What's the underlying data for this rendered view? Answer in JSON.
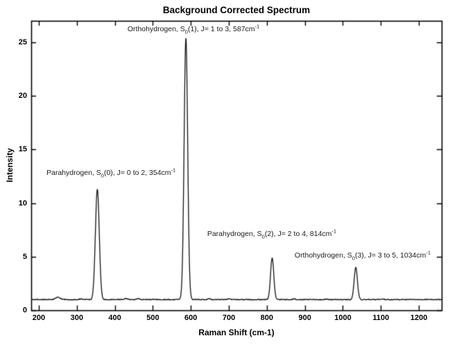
{
  "chart_data": {
    "type": "line",
    "title": "Background Corrected Spectrum",
    "xlabel": "Raman Shift (cm-1)",
    "ylabel": "Intensity",
    "xlim": [
      180,
      1260
    ],
    "ylim": [
      0,
      27
    ],
    "xticks": [
      200,
      300,
      400,
      500,
      600,
      700,
      800,
      900,
      1000,
      1100,
      1200
    ],
    "yticks": [
      0,
      5,
      10,
      15,
      20,
      25
    ],
    "grid": false,
    "legend": "none",
    "line_color": "#121212",
    "axis_color": "#000000",
    "background": "#ffffff",
    "baseline_intensity": 1.0,
    "noise_amplitude": 0.05,
    "peaks": [
      {
        "species": "Parahydrogen",
        "transition": "S0(0)",
        "J": "0 to 2",
        "center_cm": 354,
        "peak_intensity": 11.3,
        "fwhm_cm": 12
      },
      {
        "species": "Orthohydrogen",
        "transition": "S0(1)",
        "J": "1 to 3",
        "center_cm": 587,
        "peak_intensity": 25.4,
        "fwhm_cm": 11
      },
      {
        "species": "Parahydrogen",
        "transition": "S0(2)",
        "J": "2 to 4",
        "center_cm": 814,
        "peak_intensity": 4.9,
        "fwhm_cm": 10
      },
      {
        "species": "Orthohydrogen",
        "transition": "S0(3)",
        "J": "3 to 5",
        "center_cm": 1034,
        "peak_intensity": 4.0,
        "fwhm_cm": 10
      }
    ],
    "minor_features": [
      {
        "center_cm": 250,
        "height": 0.22,
        "fwhm_cm": 14
      },
      {
        "center_cm": 312,
        "height": 0.06,
        "fwhm_cm": 8
      },
      {
        "center_cm": 430,
        "height": 0.1,
        "fwhm_cm": 10
      },
      {
        "center_cm": 462,
        "height": 0.08,
        "fwhm_cm": 8
      },
      {
        "center_cm": 648,
        "height": 0.09,
        "fwhm_cm": 8
      },
      {
        "center_cm": 700,
        "height": 0.06,
        "fwhm_cm": 8
      },
      {
        "center_cm": 872,
        "height": 0.07,
        "fwhm_cm": 8
      },
      {
        "center_cm": 955,
        "height": 0.05,
        "fwhm_cm": 8
      },
      {
        "center_cm": 1105,
        "height": 0.05,
        "fwhm_cm": 8
      }
    ],
    "annotations": [
      {
        "prefix": "Parahydrogen, S",
        "sub": "0",
        "mid": "(0), J= 0 to 2, 354cm",
        "sup": "-1",
        "x": 390,
        "y": 12.8
      },
      {
        "prefix": "Orthohydrogen, S",
        "sub": "0",
        "mid": "(1), J= 1 to 3, 587cm",
        "sup": "-1",
        "x": 607,
        "y": 26.2
      },
      {
        "prefix": "Parahydrogen, S",
        "sub": "0",
        "mid": "(2), J= 2 to 4, 814cm",
        "sup": "-1",
        "x": 813,
        "y": 7.1
      },
      {
        "prefix": "Orthohydrogen, S",
        "sub": "0",
        "mid": "(3), J= 3 to 5, 1034cm",
        "sup": "-1",
        "x": 1052,
        "y": 5.1
      }
    ]
  }
}
